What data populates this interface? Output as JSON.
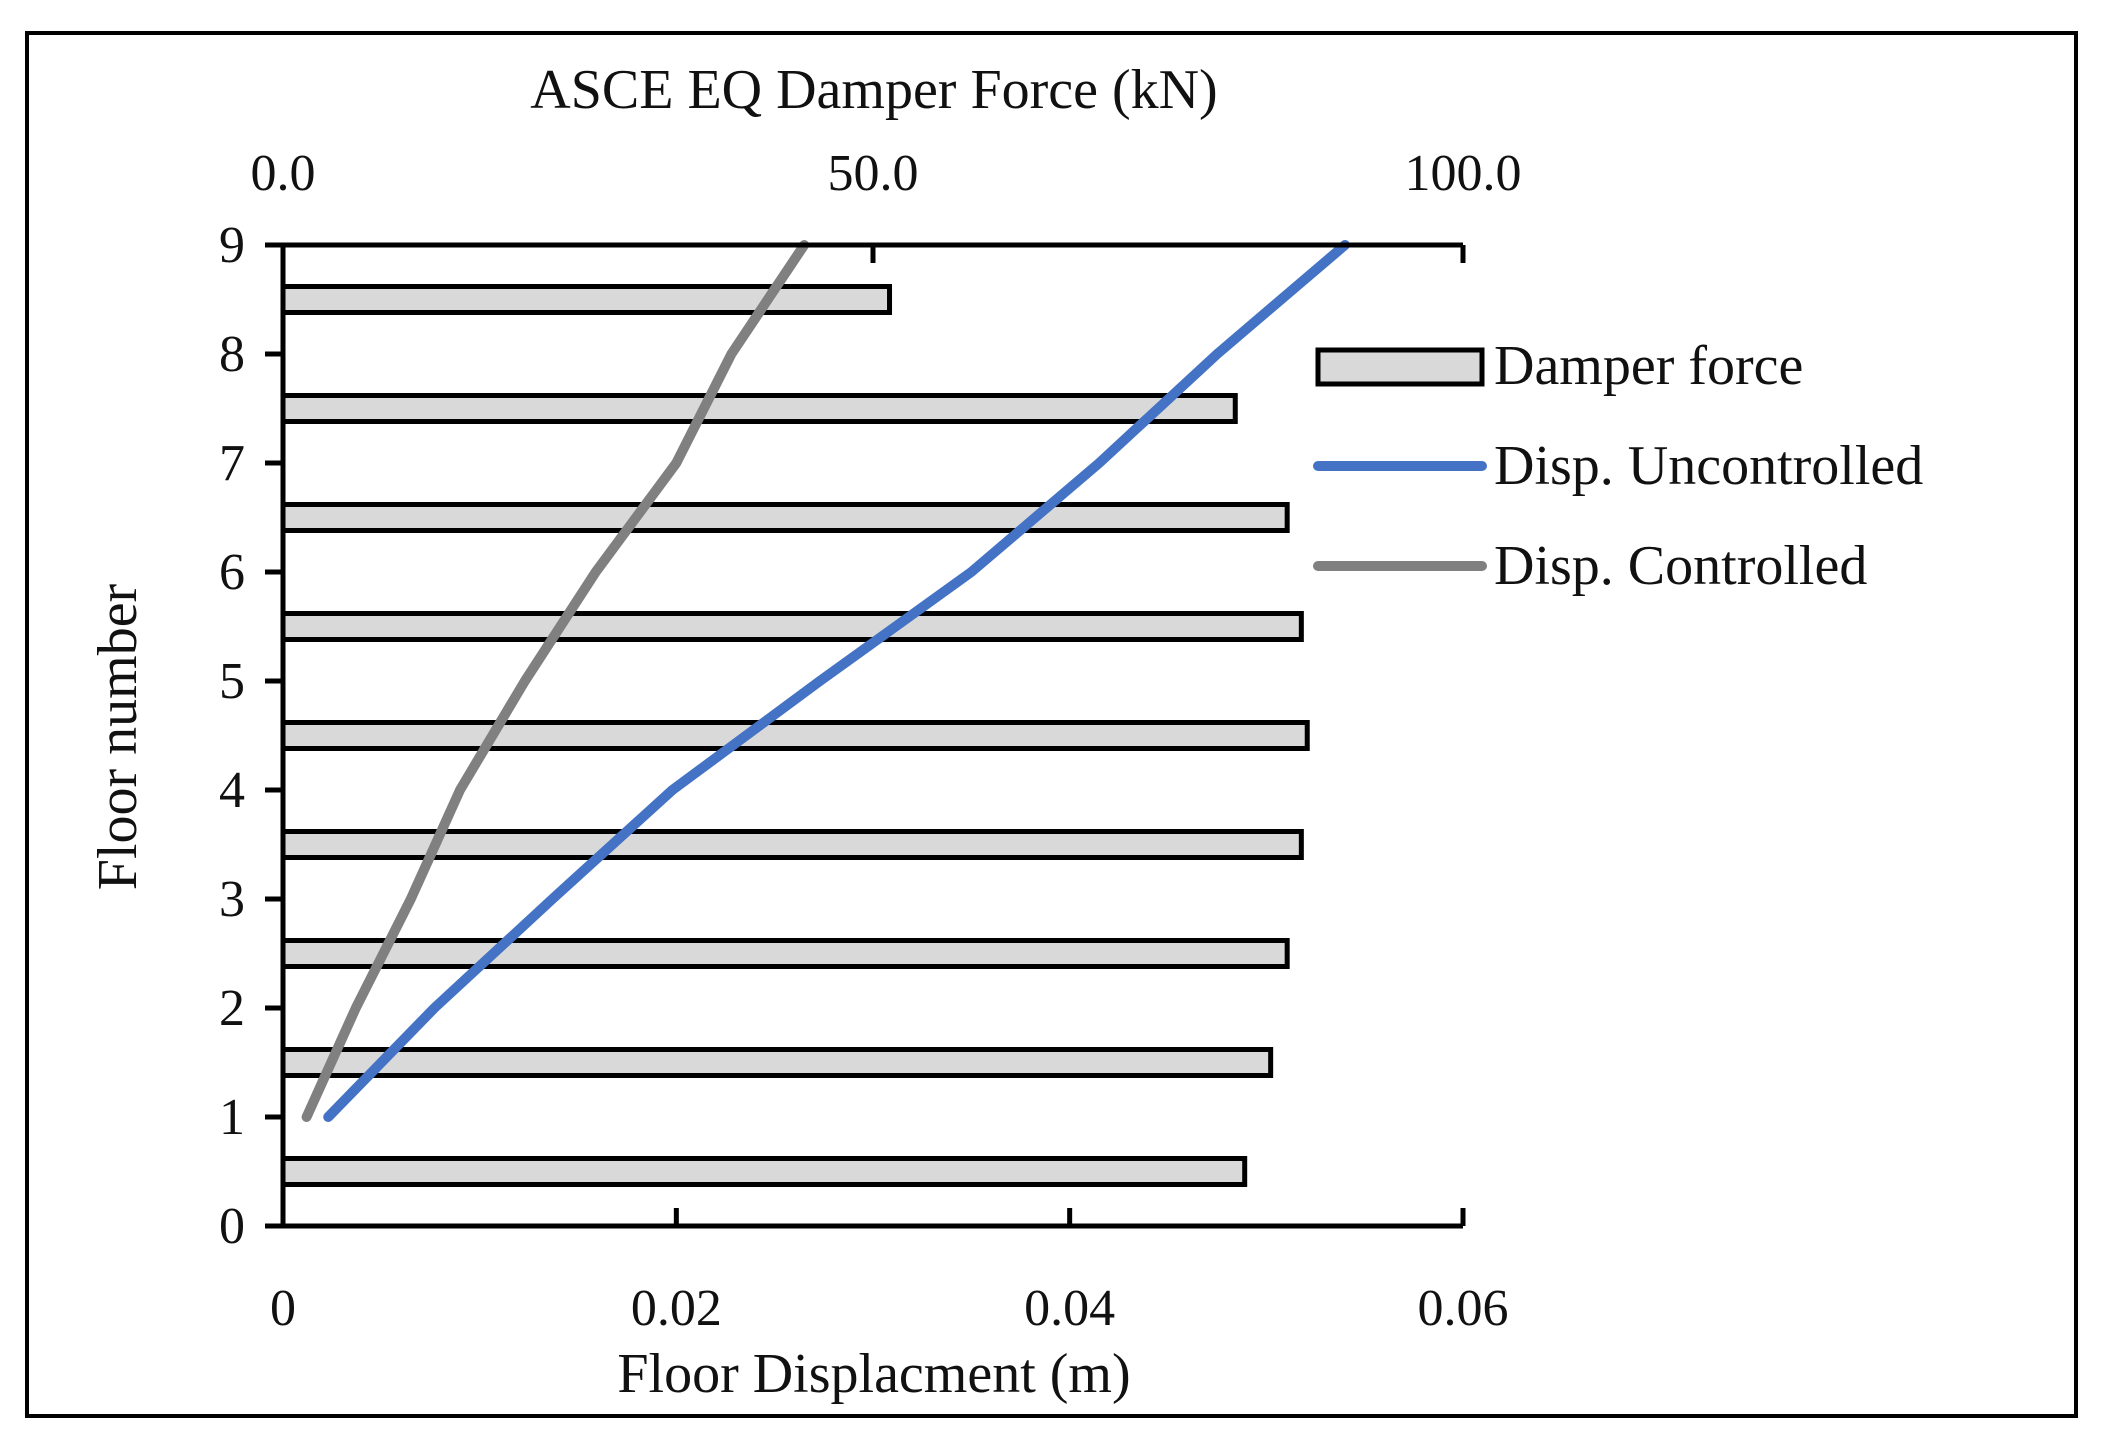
{
  "chart_data": {
    "type": "bar",
    "top_axis": {
      "title": "ASCE EQ Damper Force (kN)",
      "range": [
        0,
        100
      ],
      "ticks": [
        0,
        50,
        100
      ],
      "tick_labels": [
        "0.0",
        "50.0",
        "100.0"
      ]
    },
    "bottom_axis": {
      "title": "Floor Displacment (m)",
      "range": [
        0,
        0.06
      ],
      "ticks": [
        0,
        0.02,
        0.04,
        0.06
      ],
      "tick_labels": [
        "0",
        "0.02",
        "0.04",
        "0.06"
      ]
    },
    "y_axis": {
      "title": "Floor number",
      "range": [
        0,
        9
      ],
      "ticks": [
        0,
        1,
        2,
        3,
        4,
        5,
        6,
        7,
        8,
        9
      ],
      "tick_labels": [
        "0",
        "1",
        "2",
        "3",
        "4",
        "5",
        "6",
        "7",
        "8",
        "9"
      ]
    },
    "grid": false,
    "legend_position": "right",
    "series": [
      {
        "name": "Damper force",
        "type": "bar",
        "axis": "top",
        "color": "#d9d9d9",
        "edge_color": "#000000",
        "floors": [
          0.5,
          1.5,
          2.5,
          3.5,
          4.5,
          5.5,
          6.5,
          7.5,
          8.5
        ],
        "values": [
          81.5,
          83.7,
          85.1,
          86.3,
          86.8,
          86.3,
          85.1,
          80.7,
          51.4
        ]
      },
      {
        "name": "Disp. Uncontrolled",
        "type": "line",
        "axis": "bottom",
        "color": "#4472c4",
        "floors": [
          1,
          2,
          3,
          4,
          5,
          6,
          7,
          8,
          9
        ],
        "values": [
          0.0023,
          0.0077,
          0.0137,
          0.0198,
          0.0273,
          0.035,
          0.0415,
          0.0475,
          0.054
        ]
      },
      {
        "name": "Disp. Controlled",
        "type": "line",
        "axis": "bottom",
        "color": "#808080",
        "floors": [
          1,
          2,
          3,
          4,
          5,
          6,
          7,
          8,
          9
        ],
        "values": [
          0.0012,
          0.0037,
          0.0065,
          0.009,
          0.0123,
          0.0159,
          0.02,
          0.0228,
          0.0265
        ]
      }
    ]
  }
}
